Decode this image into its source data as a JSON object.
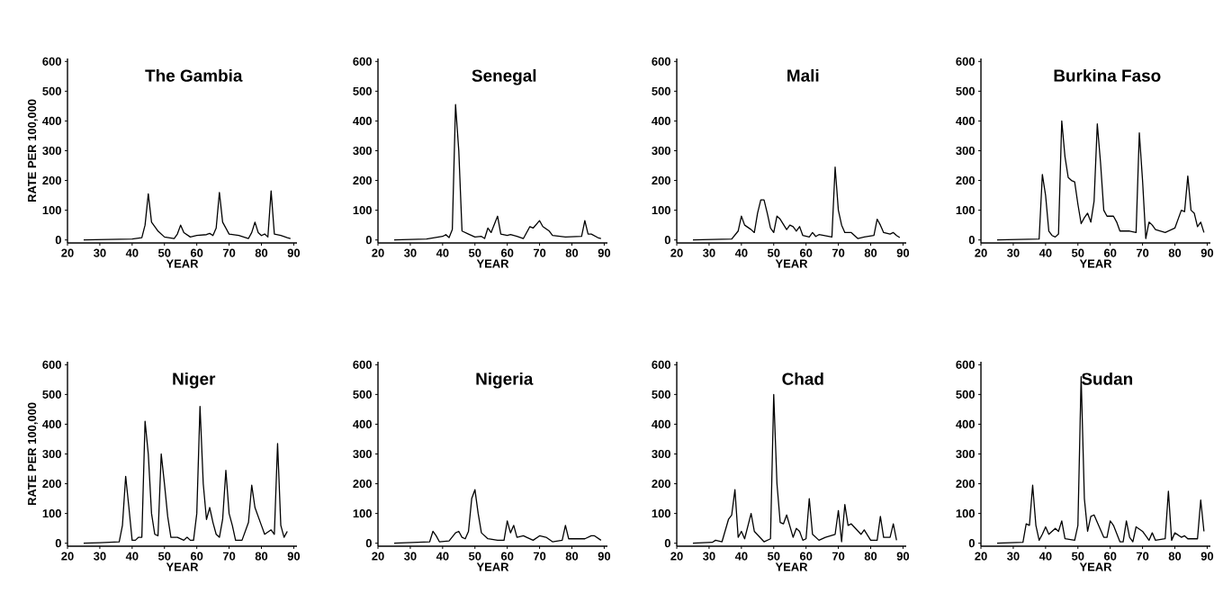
{
  "chart_data": [
    {
      "type": "line",
      "title": "The Gambia",
      "xlabel": "YEAR",
      "ylabel": "RATE PER 100,000",
      "xlim": [
        20,
        91
      ],
      "ylim": [
        -10,
        610
      ],
      "xticks": [
        20,
        30,
        40,
        50,
        60,
        70,
        80,
        90
      ],
      "yticks": [
        0,
        100,
        200,
        300,
        400,
        500,
        600
      ],
      "x": [
        25,
        40,
        43,
        44,
        45,
        46,
        48,
        50,
        53,
        54,
        55,
        56,
        58,
        60,
        63,
        64,
        65,
        66,
        67,
        68,
        70,
        73,
        76,
        77,
        78,
        79,
        80,
        81,
        82,
        83,
        84,
        86,
        88,
        89
      ],
      "series": [
        {
          "color": "#000000",
          "values": [
            0,
            3,
            8,
            50,
            155,
            60,
            30,
            10,
            5,
            20,
            50,
            25,
            10,
            15,
            18,
            22,
            15,
            40,
            160,
            60,
            20,
            15,
            5,
            25,
            60,
            25,
            15,
            20,
            10,
            165,
            20,
            15,
            8,
            5
          ]
        }
      ]
    },
    {
      "type": "line",
      "title": "Senegal",
      "xlabel": "YEAR",
      "xlim": [
        20,
        91
      ],
      "ylim": [
        -10,
        610
      ],
      "xticks": [
        20,
        30,
        40,
        50,
        60,
        70,
        80,
        90
      ],
      "yticks": [
        0,
        100,
        200,
        300,
        400,
        500,
        600
      ],
      "x": [
        25,
        35,
        40,
        41,
        42,
        43,
        44,
        45,
        46,
        48,
        50,
        52,
        53,
        54,
        55,
        57,
        58,
        60,
        61,
        63,
        65,
        67,
        68,
        70,
        71,
        73,
        74,
        78,
        83,
        84,
        85,
        86,
        88,
        89
      ],
      "series": [
        {
          "color": "#000000",
          "values": [
            0,
            3,
            12,
            18,
            8,
            35,
            455,
            300,
            30,
            20,
            10,
            12,
            5,
            40,
            25,
            80,
            20,
            15,
            18,
            12,
            5,
            45,
            40,
            65,
            45,
            30,
            15,
            10,
            12,
            65,
            20,
            20,
            8,
            5
          ]
        }
      ]
    },
    {
      "type": "line",
      "title": "Mali",
      "xlabel": "YEAR",
      "xlim": [
        20,
        91
      ],
      "ylim": [
        -10,
        610
      ],
      "xticks": [
        20,
        30,
        40,
        50,
        60,
        70,
        80,
        90
      ],
      "yticks": [
        0,
        100,
        200,
        300,
        400,
        500,
        600
      ],
      "x": [
        25,
        37,
        39,
        40,
        41,
        43,
        44,
        45,
        46,
        47,
        48,
        49,
        50,
        51,
        52,
        54,
        55,
        56,
        57,
        58,
        59,
        61,
        62,
        63,
        64,
        68,
        69,
        70,
        71,
        72,
        74,
        76,
        78,
        81,
        82,
        83,
        84,
        86,
        87,
        88,
        89
      ],
      "series": [
        {
          "color": "#000000",
          "values": [
            0,
            3,
            30,
            80,
            50,
            35,
            25,
            90,
            135,
            135,
            90,
            40,
            25,
            80,
            70,
            35,
            50,
            45,
            30,
            45,
            15,
            10,
            25,
            12,
            18,
            10,
            245,
            100,
            50,
            25,
            25,
            5,
            10,
            15,
            70,
            50,
            25,
            20,
            25,
            15,
            8
          ]
        }
      ]
    },
    {
      "type": "line",
      "title": "Burkina Faso",
      "xlabel": "YEAR",
      "xlim": [
        20,
        91
      ],
      "ylim": [
        -10,
        610
      ],
      "xticks": [
        20,
        30,
        40,
        50,
        60,
        70,
        80,
        90
      ],
      "yticks": [
        0,
        100,
        200,
        300,
        400,
        500,
        600
      ],
      "x": [
        25,
        38,
        39,
        40,
        41,
        42,
        43,
        44,
        45,
        46,
        47,
        48,
        49,
        50,
        51,
        52,
        53,
        54,
        55,
        56,
        57,
        58,
        59,
        61,
        62,
        63,
        66,
        68,
        69,
        70,
        71,
        72,
        73,
        74,
        77,
        80,
        82,
        83,
        84,
        85,
        86,
        87,
        88,
        89
      ],
      "series": [
        {
          "color": "#000000",
          "values": [
            0,
            3,
            220,
            150,
            30,
            15,
            10,
            20,
            400,
            280,
            210,
            200,
            195,
            120,
            55,
            75,
            90,
            60,
            130,
            390,
            260,
            100,
            80,
            80,
            60,
            30,
            30,
            25,
            360,
            200,
            5,
            60,
            50,
            35,
            25,
            40,
            100,
            95,
            215,
            100,
            90,
            45,
            60,
            25
          ]
        }
      ]
    },
    {
      "type": "line",
      "title": "Niger",
      "xlabel": "YEAR",
      "ylabel": "RATE PER 100,000",
      "xlim": [
        20,
        91
      ],
      "ylim": [
        -10,
        610
      ],
      "xticks": [
        20,
        30,
        40,
        50,
        60,
        70,
        80,
        90
      ],
      "yticks": [
        0,
        100,
        200,
        300,
        400,
        500,
        600
      ],
      "x": [
        25,
        30,
        36,
        37,
        38,
        39,
        40,
        41,
        42,
        43,
        44,
        45,
        46,
        47,
        48,
        49,
        50,
        51,
        52,
        54,
        56,
        57,
        58,
        59,
        60,
        61,
        62,
        63,
        64,
        65,
        66,
        67,
        68,
        69,
        70,
        71,
        72,
        74,
        76,
        77,
        78,
        80,
        81,
        83,
        84,
        85,
        86,
        87,
        88
      ],
      "series": [
        {
          "color": "#000000",
          "values": [
            0,
            2,
            5,
            60,
            225,
            120,
            10,
            10,
            20,
            20,
            410,
            300,
            100,
            30,
            25,
            300,
            200,
            90,
            20,
            20,
            10,
            20,
            10,
            10,
            100,
            460,
            200,
            80,
            120,
            70,
            30,
            20,
            80,
            245,
            100,
            60,
            10,
            10,
            70,
            195,
            120,
            60,
            30,
            45,
            30,
            335,
            60,
            20,
            40
          ]
        }
      ]
    },
    {
      "type": "line",
      "title": "Nigeria",
      "xlabel": "YEAR",
      "xlim": [
        20,
        91
      ],
      "ylim": [
        -10,
        610
      ],
      "xticks": [
        20,
        30,
        40,
        50,
        60,
        70,
        80,
        90
      ],
      "yticks": [
        0,
        100,
        200,
        300,
        400,
        500,
        600
      ],
      "x": [
        25,
        36,
        37,
        38,
        39,
        42,
        44,
        45,
        46,
        47,
        48,
        49,
        50,
        51,
        52,
        54,
        57,
        59,
        60,
        61,
        62,
        63,
        65,
        66,
        68,
        70,
        72,
        74,
        77,
        78,
        79,
        84,
        86,
        87,
        89
      ],
      "series": [
        {
          "color": "#000000",
          "values": [
            0,
            5,
            40,
            25,
            5,
            8,
            35,
            40,
            20,
            15,
            40,
            150,
            180,
            100,
            35,
            15,
            10,
            10,
            75,
            35,
            60,
            20,
            25,
            20,
            10,
            25,
            20,
            5,
            10,
            60,
            15,
            15,
            25,
            25,
            10
          ]
        }
      ]
    },
    {
      "type": "line",
      "title": "Chad",
      "xlabel": "YEAR",
      "xlim": [
        20,
        91
      ],
      "ylim": [
        -10,
        610
      ],
      "xticks": [
        20,
        30,
        40,
        50,
        60,
        70,
        80,
        90
      ],
      "yticks": [
        0,
        100,
        200,
        300,
        400,
        500,
        600
      ],
      "x": [
        25,
        31,
        32,
        34,
        36,
        37,
        38,
        39,
        40,
        41,
        43,
        44,
        47,
        49,
        50,
        51,
        52,
        53,
        54,
        56,
        57,
        58,
        59,
        60,
        61,
        62,
        64,
        66,
        69,
        70,
        71,
        72,
        73,
        74,
        77,
        78,
        80,
        82,
        83,
        84,
        86,
        87,
        88
      ],
      "series": [
        {
          "color": "#000000",
          "values": [
            0,
            3,
            10,
            5,
            80,
            95,
            180,
            20,
            40,
            15,
            100,
            40,
            5,
            15,
            500,
            200,
            70,
            65,
            95,
            20,
            50,
            40,
            10,
            15,
            150,
            30,
            10,
            20,
            30,
            110,
            5,
            130,
            60,
            65,
            30,
            45,
            10,
            10,
            90,
            20,
            20,
            65,
            10
          ]
        }
      ]
    },
    {
      "type": "line",
      "title": "Sudan",
      "xlabel": "YEAR",
      "xlim": [
        20,
        91
      ],
      "ylim": [
        -10,
        610
      ],
      "xticks": [
        20,
        30,
        40,
        50,
        60,
        70,
        80,
        90
      ],
      "yticks": [
        0,
        100,
        200,
        300,
        400,
        500,
        600
      ],
      "x": [
        25,
        33,
        34,
        35,
        36,
        37,
        38,
        39,
        40,
        41,
        43,
        44,
        45,
        46,
        49,
        50,
        51,
        52,
        53,
        54,
        55,
        58,
        59,
        60,
        61,
        63,
        64,
        65,
        66,
        67,
        68,
        70,
        72,
        73,
        74,
        77,
        78,
        79,
        80,
        82,
        83,
        84,
        87,
        88,
        89
      ],
      "series": [
        {
          "color": "#000000",
          "values": [
            0,
            3,
            65,
            60,
            195,
            60,
            10,
            30,
            55,
            30,
            50,
            40,
            75,
            15,
            10,
            60,
            560,
            150,
            40,
            90,
            95,
            20,
            20,
            75,
            60,
            5,
            5,
            75,
            20,
            5,
            55,
            40,
            10,
            35,
            10,
            15,
            175,
            10,
            35,
            20,
            25,
            15,
            15,
            145,
            40
          ]
        }
      ]
    }
  ]
}
